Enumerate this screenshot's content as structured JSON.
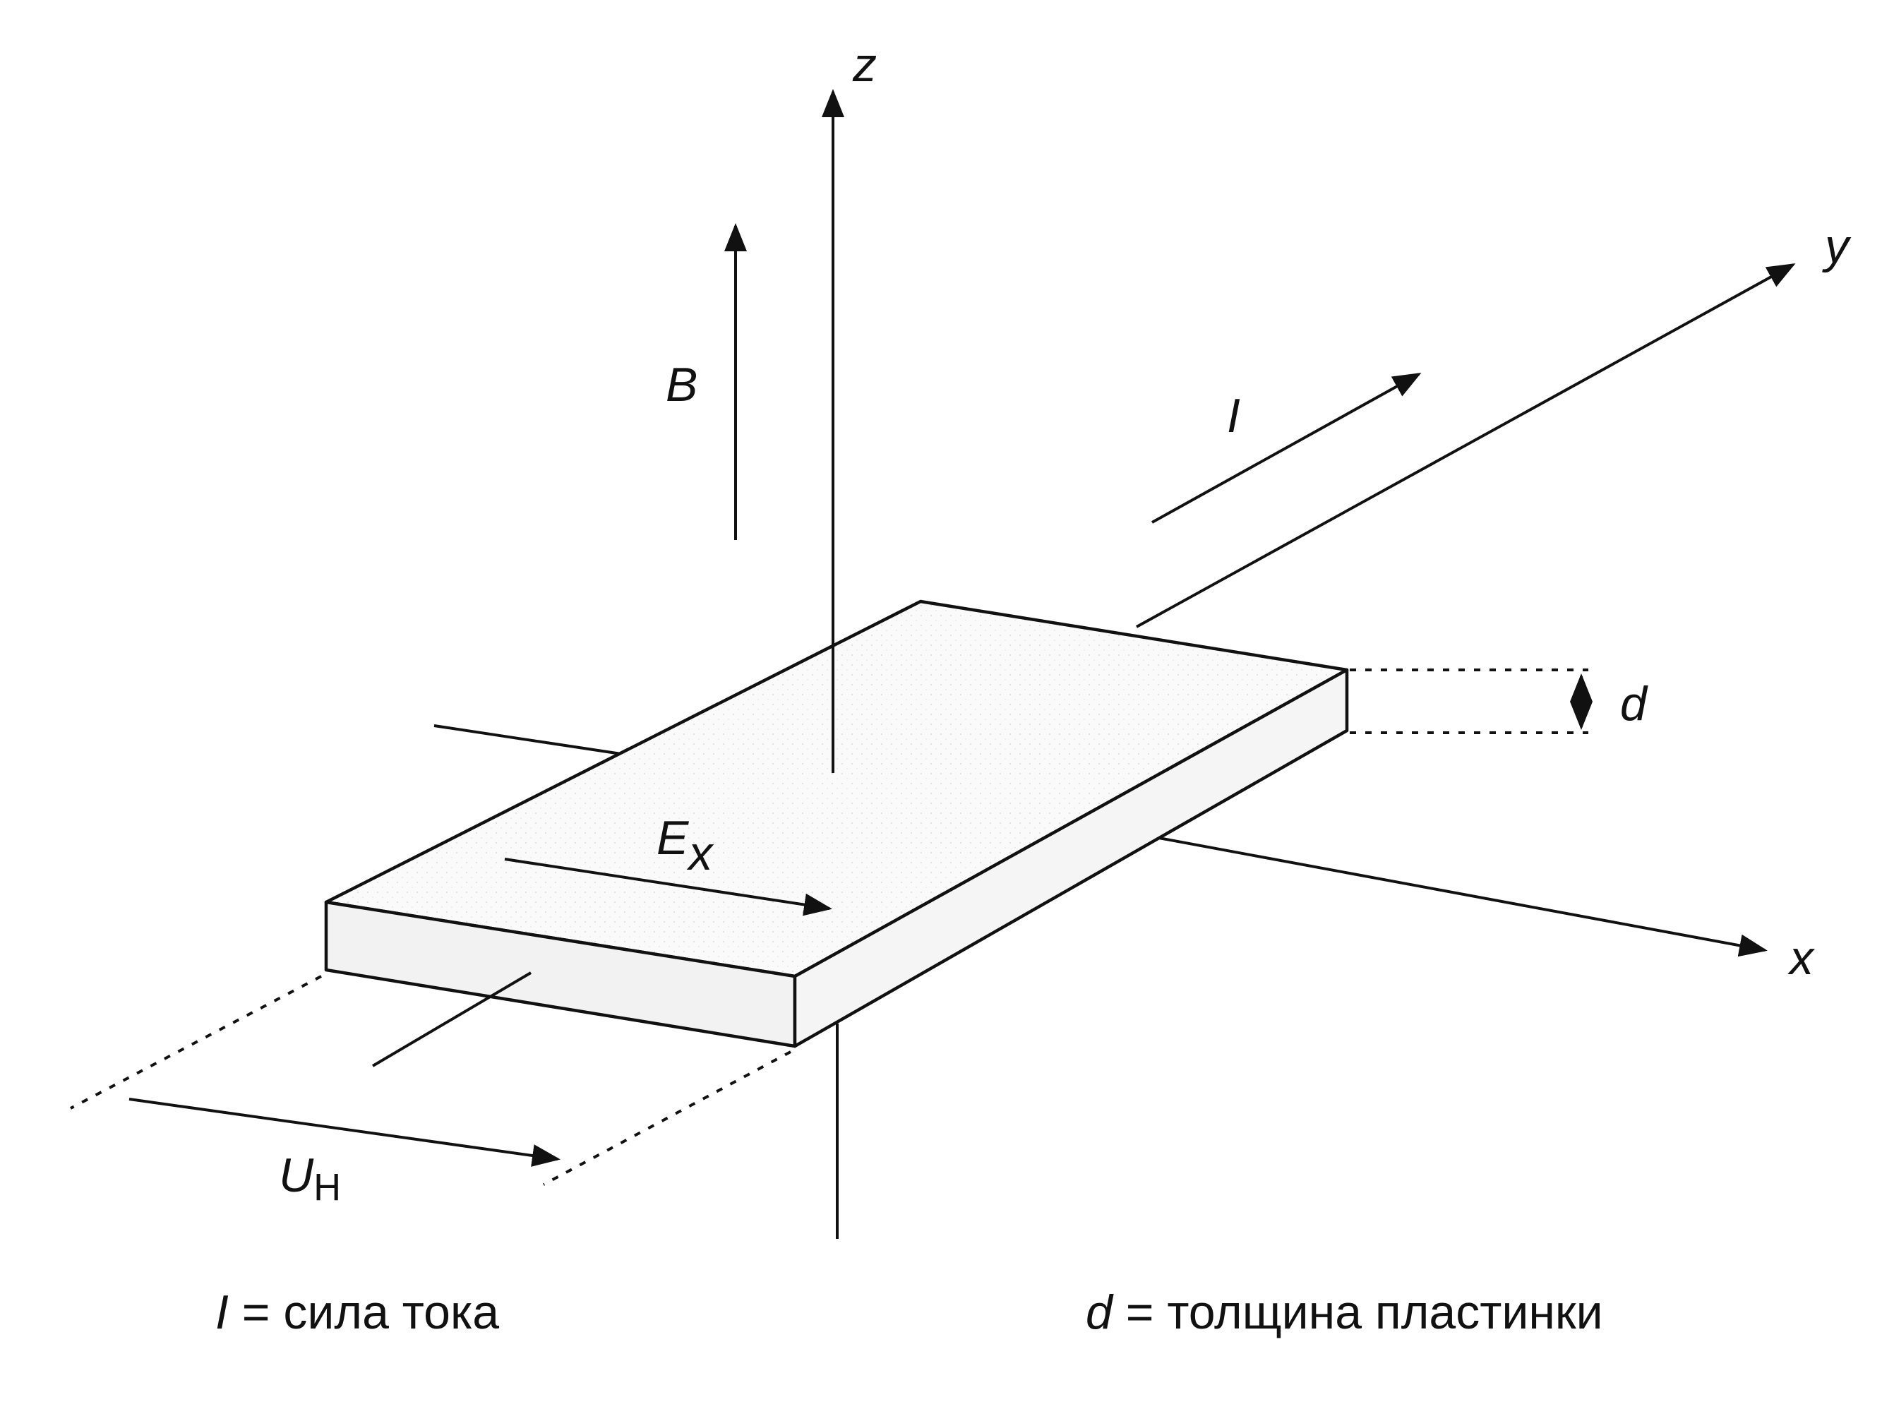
{
  "labels": {
    "z_axis": "z",
    "y_axis": "y",
    "x_axis": "x",
    "magnetic_field": "B",
    "current": "I",
    "thickness": "d",
    "field_main": "E",
    "field_sub": "x",
    "hall_voltage_main": "U",
    "hall_voltage_sub": "H"
  },
  "captions": {
    "current_var": "I",
    "current_text": " = сила тока",
    "thickness_var": "d",
    "thickness_text": " = толщина пластинки"
  },
  "colors": {
    "ink": "#111111",
    "plate_top": "#fafafa",
    "plate_side": "#f2f2f2"
  }
}
